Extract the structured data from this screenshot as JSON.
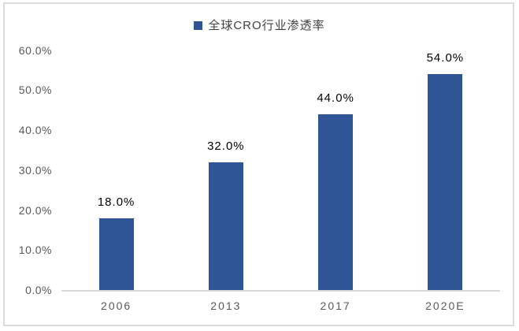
{
  "chart_data": {
    "type": "bar",
    "title": "",
    "legend": "全球CRO行业渗透率",
    "legend_position": "top-center",
    "legend_marker": "square-icon",
    "categories": [
      "2006",
      "2013",
      "2017",
      "2020E"
    ],
    "values": [
      18.0,
      32.0,
      44.0,
      54.0
    ],
    "data_labels": [
      "18.0%",
      "32.0%",
      "44.0%",
      "54.0%"
    ],
    "yticks": [
      "60.0%",
      "50.0%",
      "40.0%",
      "30.0%",
      "20.0%",
      "10.0%",
      "0.0%"
    ],
    "ylim": [
      0,
      60
    ],
    "xlabel": "",
    "ylabel": "",
    "grid": false,
    "colors": {
      "bar": "#2F5597",
      "axis_line": "#D9D9D9",
      "frame_border": "#DBDBDB",
      "tick_label": "#595959",
      "data_label": "#000000",
      "legend_text": "#404040"
    }
  }
}
